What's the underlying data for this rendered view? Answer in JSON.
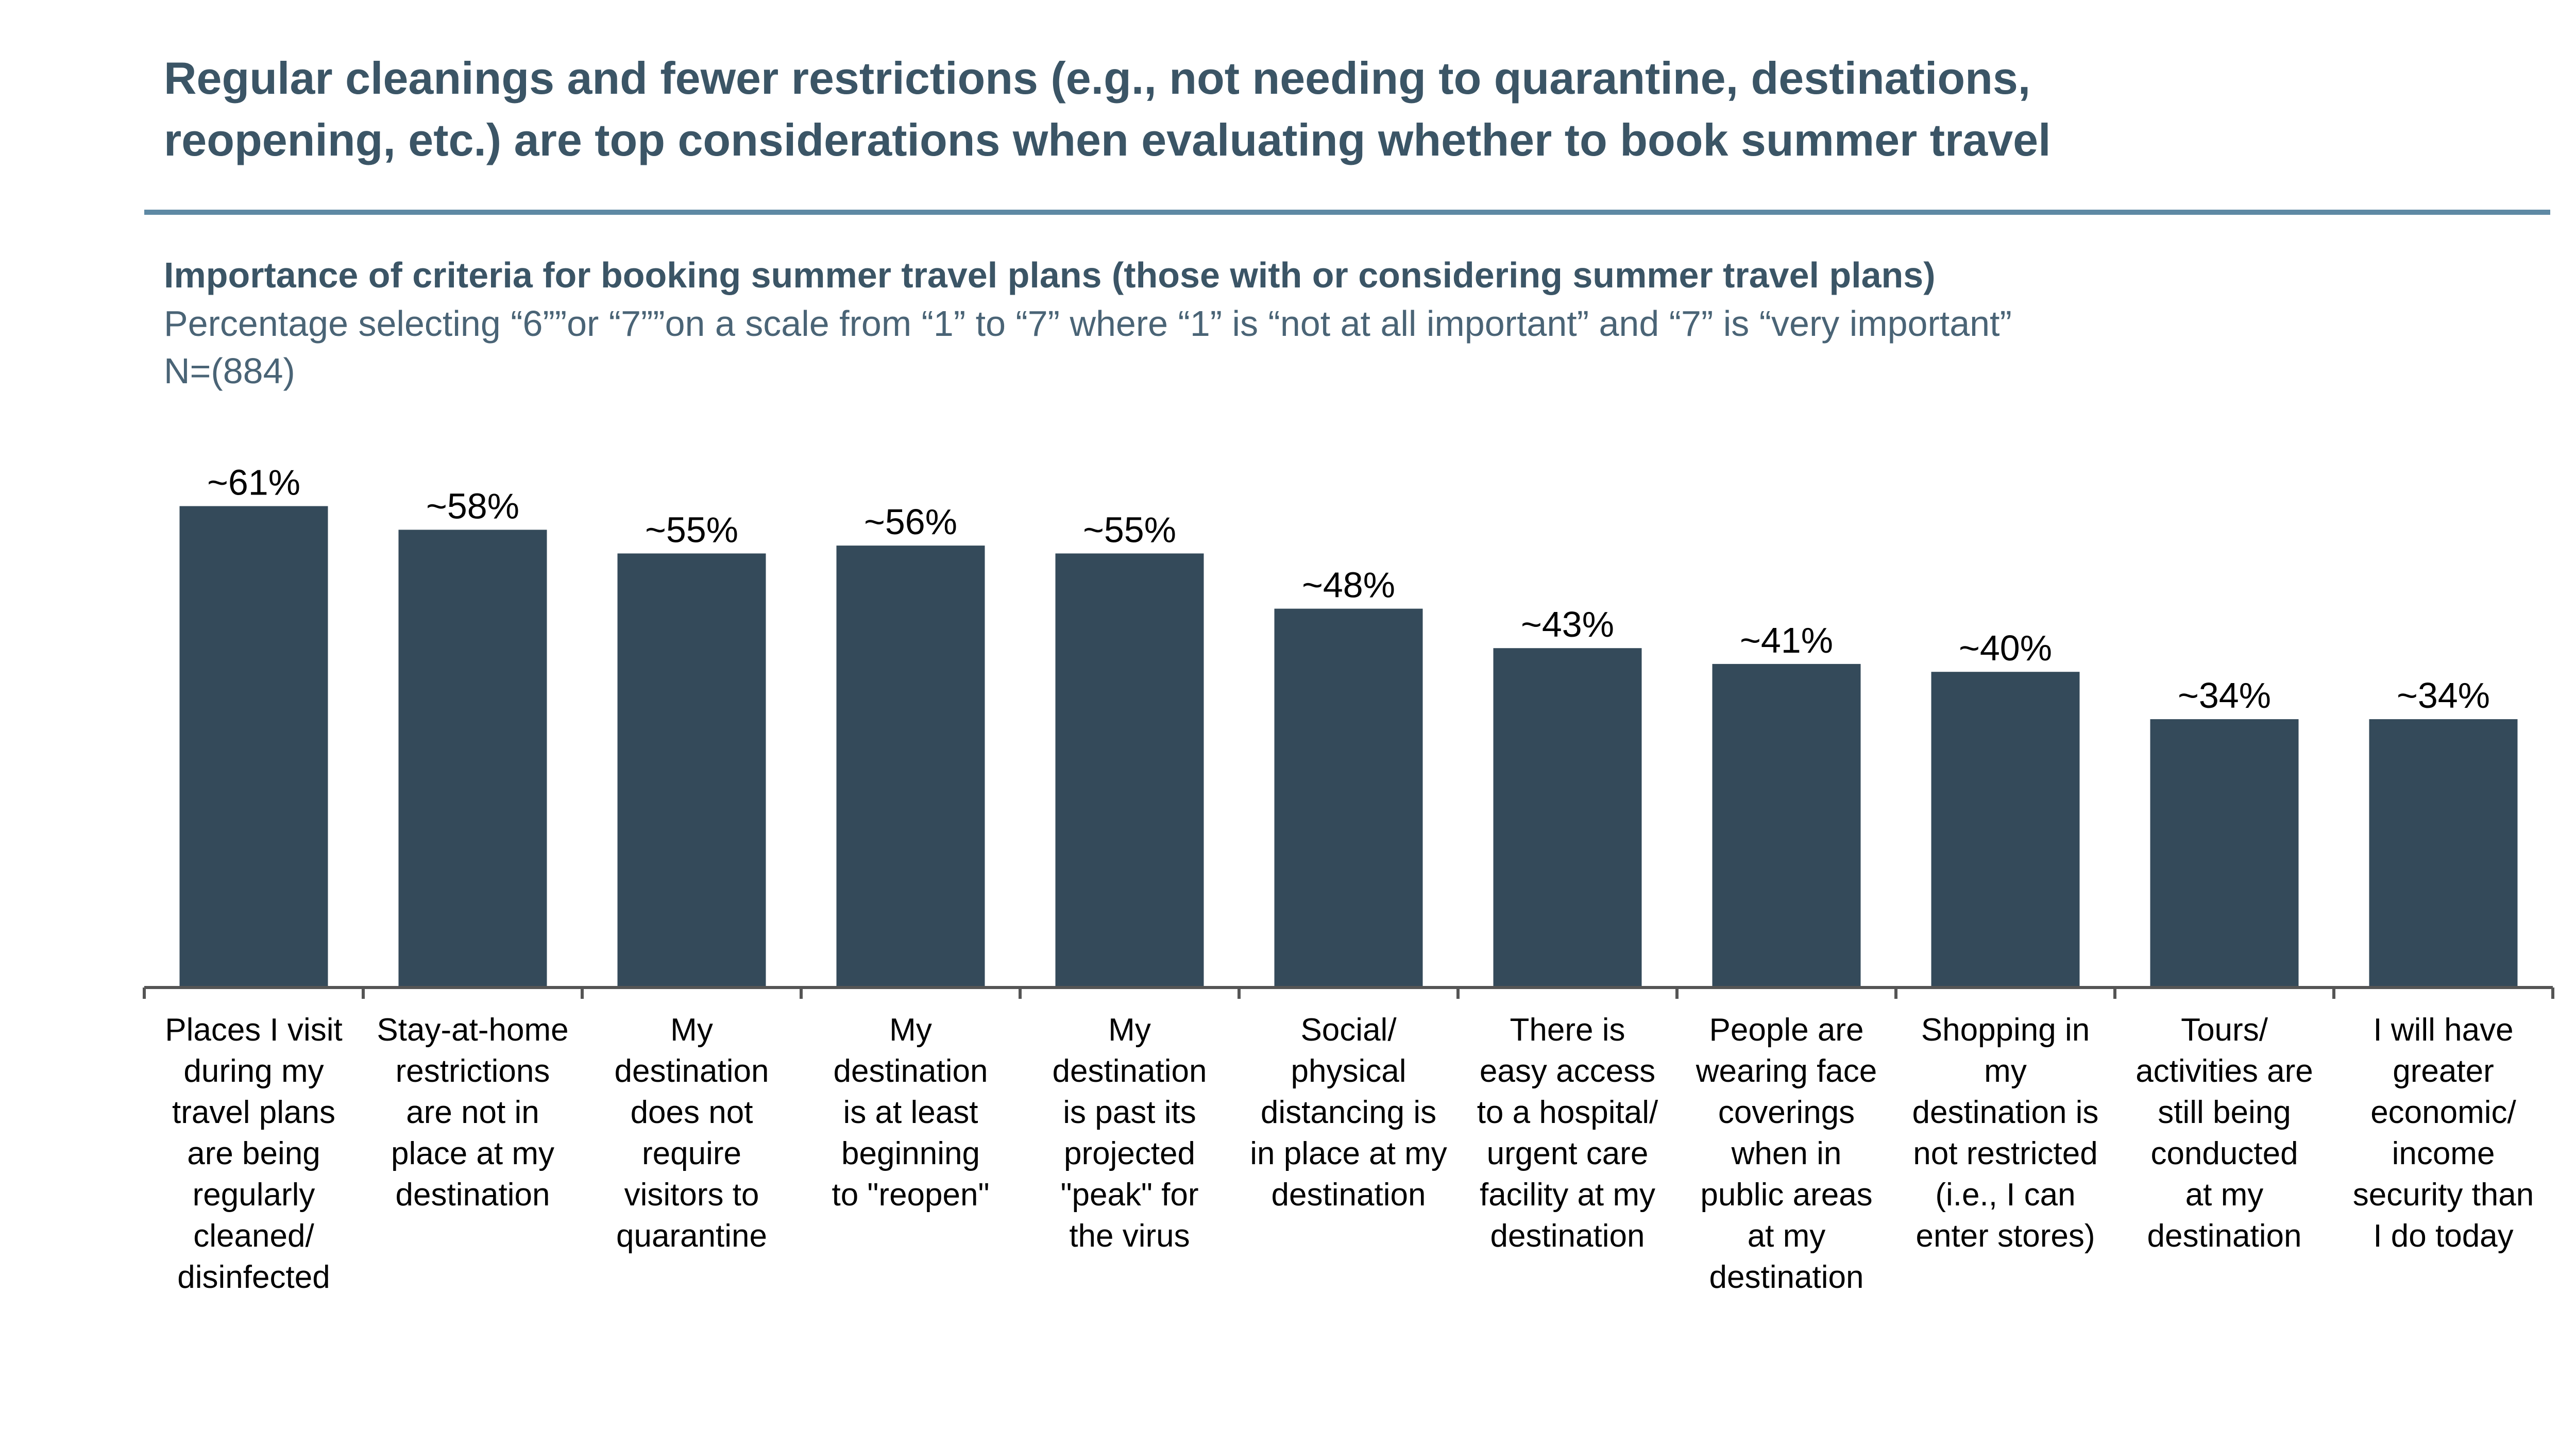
{
  "header": {
    "headline_line1": "Regular cleanings and fewer restrictions (e.g., not needing to quarantine, destinations,",
    "headline_line2": "reopening, etc.) are top considerations when evaluating whether to book summer travel",
    "rule_color": "#5e89a4"
  },
  "chart_data": {
    "type": "bar",
    "title": "Importance of criteria for booking summer travel plans (those with or considering summer travel plans)",
    "subtitle": "Percentage selecting “6””or “7””on a scale from “1” to “7” where “1” is “not at all important” and “7” is “very important”",
    "sample_size": "N=(884)",
    "xlabel": "",
    "ylabel": "",
    "ylim": [
      0,
      70
    ],
    "grid": false,
    "legend": "none",
    "bar_color": "#344a5a",
    "axis_color": "#555555",
    "categories": [
      "Places I visit\nduring my\ntravel plans\nare being\nregularly\ncleaned/\ndisinfected",
      "Stay-at-home\nrestrictions\nare not in\nplace at my\ndestination",
      "My\ndestination\ndoes not\nrequire\nvisitors to\nquarantine",
      "My\ndestination\nis at least\nbeginning\nto \"reopen\"",
      "My\ndestination\nis past its\nprojected\n\"peak\" for\nthe virus",
      "Social/\nphysical\ndistancing is\nin place at my\ndestination",
      "There is\neasy access\nto a hospital/\nurgent care\nfacility at my\ndestination",
      "People are\nwearing face\ncoverings\nwhen in\npublic areas\nat my\ndestination",
      "Shopping in\nmy\ndestination is\nnot restricted\n(i.e., I can\nenter stores)",
      "Tours/\nactivities are\nstill being\nconducted\nat my\ndestination",
      "I will have\ngreater\neconomic/\nincome\nsecurity than\nI do today"
    ],
    "values": [
      61,
      58,
      55,
      56,
      55,
      48,
      43,
      41,
      40,
      34,
      34
    ],
    "data_labels": [
      "~61%",
      "~58%",
      "~55%",
      "~56%",
      "~55%",
      "~48%",
      "~43%",
      "~41%",
      "~40%",
      "~34%",
      "~34%"
    ]
  }
}
